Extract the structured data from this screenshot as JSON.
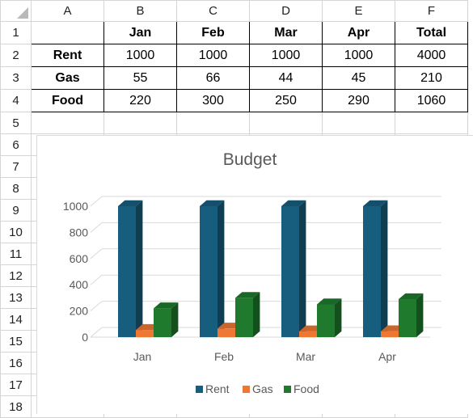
{
  "sheet": {
    "column_headers": [
      "A",
      "B",
      "C",
      "D",
      "E",
      "F"
    ],
    "row_numbers": [
      "1",
      "2",
      "3",
      "4",
      "5",
      "6",
      "7",
      "8",
      "9",
      "10",
      "11",
      "12",
      "13",
      "14",
      "15",
      "16",
      "17",
      "18"
    ],
    "table": {
      "header": [
        "",
        "Jan",
        "Feb",
        "Mar",
        "Apr",
        "Total"
      ],
      "rows": [
        [
          "Rent",
          "1000",
          "1000",
          "1000",
          "1000",
          "4000"
        ],
        [
          "Gas",
          "55",
          "66",
          "44",
          "45",
          "210"
        ],
        [
          "Food",
          "220",
          "300",
          "250",
          "290",
          "1060"
        ]
      ]
    }
  },
  "chart_data": {
    "type": "bar",
    "subtype": "3d-clustered-column",
    "title": "Budget",
    "categories": [
      "Jan",
      "Feb",
      "Mar",
      "Apr"
    ],
    "series": [
      {
        "name": "Rent",
        "values": [
          1000,
          1000,
          1000,
          1000
        ],
        "color": "#175e7e"
      },
      {
        "name": "Gas",
        "values": [
          55,
          66,
          44,
          45
        ],
        "color": "#ee7733"
      },
      {
        "name": "Food",
        "values": [
          220,
          300,
          250,
          290
        ],
        "color": "#1f7a2e"
      }
    ],
    "y_ticks": [
      "0",
      "200",
      "400",
      "600",
      "800",
      "1000"
    ],
    "ylim": [
      0,
      1000
    ],
    "grid": true,
    "legend": "bottom",
    "xlabel": "",
    "ylabel": ""
  }
}
